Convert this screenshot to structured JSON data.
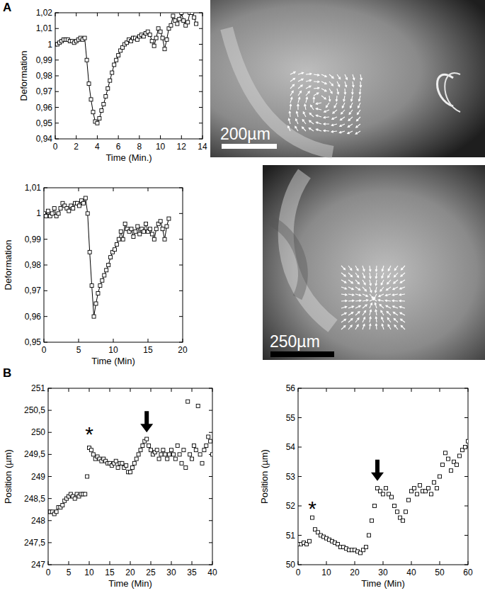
{
  "panels": [
    "A",
    "B"
  ],
  "images": [
    {
      "scale_bar": "200µm"
    },
    {
      "scale_bar": "250µm"
    }
  ],
  "chart_data": [
    {
      "type": "line",
      "marker": "square",
      "color": "#000000",
      "xlabel": "Time (Min.)",
      "ylabel": "Deformation",
      "xlim": [
        0,
        14
      ],
      "ylim": [
        0.94,
        1.02
      ],
      "xticks": [
        0,
        2,
        4,
        6,
        8,
        10,
        12,
        14
      ],
      "yticks": [
        {
          "value": 0.94,
          "label": "0,94"
        },
        {
          "value": 0.95,
          "label": "0,95"
        },
        {
          "value": 0.96,
          "label": "0,96"
        },
        {
          "value": 0.97,
          "label": "0,97"
        },
        {
          "value": 0.98,
          "label": "0,98"
        },
        {
          "value": 0.99,
          "label": "0,99"
        },
        1,
        {
          "value": 1.01,
          "label": "1,01"
        },
        {
          "value": 1.02,
          "label": "1,02"
        }
      ],
      "x": [
        0,
        0.2,
        0.4,
        0.6,
        0.8,
        1.0,
        1.2,
        1.4,
        1.6,
        1.8,
        2.0,
        2.2,
        2.4,
        2.6,
        2.8,
        3.0,
        3.2,
        3.4,
        3.6,
        3.8,
        4.0,
        4.2,
        4.4,
        4.6,
        4.8,
        5.0,
        5.2,
        5.4,
        5.6,
        5.8,
        6.0,
        6.2,
        6.4,
        6.6,
        6.8,
        7.0,
        7.2,
        7.4,
        7.6,
        7.8,
        8.0,
        8.2,
        8.4,
        8.6,
        8.8,
        9.0,
        9.2,
        9.4,
        9.6,
        9.8,
        10.0,
        10.2,
        10.4,
        10.6,
        10.8,
        11.0,
        11.2,
        11.4,
        11.6,
        11.8,
        12.0,
        12.2,
        12.4,
        12.6,
        12.8,
        13.0,
        13.2,
        13.4
      ],
      "values": [
        1.0,
        1.0,
        1.001,
        1.002,
        1.003,
        1.003,
        1.003,
        1.002,
        1.002,
        1.001,
        1.002,
        1.003,
        1.004,
        1.003,
        1.004,
        0.99,
        0.975,
        0.965,
        0.957,
        0.951,
        0.95,
        0.953,
        0.958,
        0.962,
        0.967,
        0.972,
        0.977,
        0.982,
        0.987,
        0.99,
        0.993,
        0.996,
        0.998,
        1.0,
        1.001,
        1.003,
        1.002,
        1.004,
        1.004,
        1.003,
        1.005,
        1.006,
        1.005,
        1.007,
        1.008,
        1.006,
        1.002,
        0.999,
        1.004,
        1.01,
        1.008,
        1.004,
        0.997,
        1.003,
        1.01,
        1.012,
        1.018,
        1.015,
        1.013,
        1.016,
        1.02,
        1.015,
        1.012,
        1.014,
        1.02,
        1.02,
        1.017,
        1.013
      ]
    },
    {
      "type": "line",
      "marker": "square",
      "color": "#000000",
      "xlabel": "Time (Min)",
      "ylabel": "Deformation",
      "xlim": [
        0,
        20
      ],
      "ylim": [
        0.95,
        1.01
      ],
      "xticks": [
        0,
        5,
        10,
        15,
        20
      ],
      "yticks": [
        {
          "value": 0.95,
          "label": "0,95"
        },
        {
          "value": 0.96,
          "label": "0,96"
        },
        {
          "value": 0.97,
          "label": "0,97"
        },
        {
          "value": 0.98,
          "label": "0,98"
        },
        {
          "value": 0.99,
          "label": "0,99"
        },
        1,
        {
          "value": 1.01,
          "label": "1,01"
        }
      ],
      "x": [
        0,
        0.3,
        0.6,
        0.9,
        1.2,
        1.5,
        1.8,
        2.1,
        2.4,
        2.7,
        3.0,
        3.3,
        3.6,
        3.9,
        4.2,
        4.5,
        4.8,
        5.1,
        5.4,
        5.7,
        6.0,
        6.3,
        6.6,
        6.9,
        7.2,
        7.5,
        7.8,
        8.1,
        8.4,
        8.7,
        9.0,
        9.3,
        9.6,
        9.9,
        10.2,
        10.5,
        10.8,
        11.1,
        11.4,
        11.7,
        12.0,
        12.3,
        12.6,
        12.9,
        13.2,
        13.5,
        13.8,
        14.1,
        14.4,
        14.7,
        15.0,
        15.3,
        15.6,
        15.9,
        16.2,
        16.5,
        16.8,
        17.1,
        17.4,
        17.7,
        18.0
      ],
      "values": [
        1.0,
        0.999,
        1.001,
        0.999,
        1.0,
        1.002,
        0.999,
        1.0,
        1.002,
        1.004,
        1.003,
        1.002,
        1.001,
        1.003,
        1.002,
        1.004,
        1.004,
        1.003,
        1.005,
        1.004,
        1.006,
        1.0,
        0.985,
        0.972,
        0.96,
        0.965,
        0.969,
        0.972,
        0.974,
        0.976,
        0.978,
        0.98,
        0.983,
        0.985,
        0.986,
        0.988,
        0.99,
        0.993,
        0.99,
        0.996,
        0.994,
        0.993,
        0.994,
        0.991,
        0.993,
        0.995,
        0.992,
        0.994,
        0.993,
        0.996,
        0.993,
        0.994,
        0.992,
        0.99,
        0.994,
        0.996,
        0.997,
        0.994,
        0.99,
        0.995,
        0.998
      ]
    },
    {
      "type": "scatter",
      "marker": "square",
      "color": "#000000",
      "xlabel": "Time (Min)",
      "ylabel": "Position (µm)",
      "xlim": [
        0,
        40
      ],
      "ylim": [
        247,
        251
      ],
      "xticks": [
        0,
        5,
        10,
        15,
        20,
        25,
        30,
        35,
        40
      ],
      "yticks": [
        247,
        {
          "value": 247.5,
          "label": "247,5"
        },
        248,
        {
          "value": 248.5,
          "label": "248,5"
        },
        249,
        {
          "value": 249.5,
          "label": "249,5"
        },
        250,
        {
          "value": 250.5,
          "label": "250,5"
        },
        251
      ],
      "x": [
        0,
        0.5,
        1,
        1.5,
        2,
        2.5,
        3,
        3.5,
        4,
        4.5,
        5,
        5.5,
        6,
        6.5,
        7,
        7.5,
        8,
        8.5,
        9,
        9.5,
        10,
        10.5,
        11,
        11.5,
        12,
        12.5,
        13,
        13.5,
        14,
        14.5,
        15,
        15.5,
        16,
        16.5,
        17,
        17.5,
        18,
        18.5,
        19,
        19.5,
        20,
        20.5,
        21,
        21.5,
        22,
        22.5,
        23,
        23.5,
        24,
        24.5,
        25,
        25.5,
        26,
        26.5,
        27,
        27.5,
        28,
        28.5,
        29,
        29.5,
        30,
        30.5,
        31,
        31.5,
        32,
        32.5,
        33,
        33.5,
        34,
        34.5,
        35,
        35.5,
        36,
        36.5,
        37,
        37.5,
        38,
        38.5,
        39,
        39.5,
        40
      ],
      "values": [
        248.2,
        248.2,
        248.2,
        248.15,
        248.2,
        248.3,
        248.3,
        248.35,
        248.45,
        248.5,
        248.55,
        248.6,
        248.55,
        248.5,
        248.6,
        248.55,
        248.6,
        248.6,
        248.6,
        249.0,
        249.65,
        249.6,
        249.5,
        249.4,
        249.45,
        249.4,
        249.35,
        249.4,
        249.35,
        249.3,
        249.3,
        249.25,
        249.3,
        249.35,
        249.2,
        249.3,
        249.3,
        249.2,
        249.25,
        249.1,
        249.1,
        249.2,
        249.3,
        249.4,
        249.5,
        249.6,
        249.7,
        249.8,
        249.85,
        249.7,
        249.6,
        249.5,
        249.55,
        249.6,
        249.4,
        249.5,
        249.6,
        249.5,
        249.4,
        249.5,
        249.6,
        249.5,
        249.4,
        249.7,
        249.5,
        249.3,
        249.6,
        249.2,
        250.7,
        249.5,
        249.4,
        249.7,
        249.6,
        250.6,
        249.5,
        249.3,
        249.6,
        249.7,
        249.9,
        249.8,
        249.5
      ],
      "annotations": [
        {
          "text": "*",
          "x": 10,
          "y": 250.05
        },
        {
          "marker": "arrow",
          "x": 24,
          "y": 250.0
        }
      ]
    },
    {
      "type": "scatter",
      "marker": "square",
      "color": "#000000",
      "xlabel": "Time (Min)",
      "ylabel": "Position (µm)",
      "xlim": [
        0,
        60
      ],
      "ylim": [
        50,
        56
      ],
      "xticks": [
        0,
        10,
        20,
        30,
        40,
        50,
        60
      ],
      "yticks": [
        50,
        51,
        52,
        53,
        54,
        55,
        56
      ],
      "x": [
        0,
        1,
        2,
        3,
        4,
        5,
        6,
        7,
        8,
        9,
        10,
        11,
        12,
        13,
        14,
        15,
        16,
        17,
        18,
        19,
        20,
        21,
        22,
        23,
        24,
        25,
        26,
        27,
        28,
        29,
        30,
        31,
        32,
        33,
        34,
        35,
        36,
        37,
        38,
        39,
        40,
        41,
        42,
        43,
        44,
        45,
        46,
        47,
        48,
        49,
        50,
        51,
        52,
        53,
        54,
        55,
        56,
        57,
        58,
        59,
        60
      ],
      "values": [
        50.7,
        50.7,
        50.75,
        50.7,
        50.8,
        51.6,
        51.2,
        51.1,
        51.0,
        50.95,
        50.9,
        50.85,
        50.8,
        50.75,
        50.7,
        50.6,
        50.6,
        50.55,
        50.5,
        50.5,
        50.5,
        50.45,
        50.4,
        50.5,
        50.6,
        51.0,
        51.5,
        52.0,
        52.6,
        52.5,
        52.4,
        52.6,
        52.4,
        52.3,
        52.0,
        51.8,
        51.6,
        51.5,
        51.8,
        52.2,
        52.5,
        52.6,
        52.4,
        52.7,
        52.5,
        52.5,
        52.6,
        52.4,
        52.8,
        52.6,
        53.0,
        53.4,
        53.8,
        53.6,
        53.2,
        53.5,
        53.4,
        53.7,
        53.9,
        54.0,
        54.2
      ],
      "annotations": [
        {
          "text": "*",
          "x": 5,
          "y": 52.05
        },
        {
          "marker": "arrow",
          "x": 28,
          "y": 52.85
        }
      ]
    }
  ]
}
